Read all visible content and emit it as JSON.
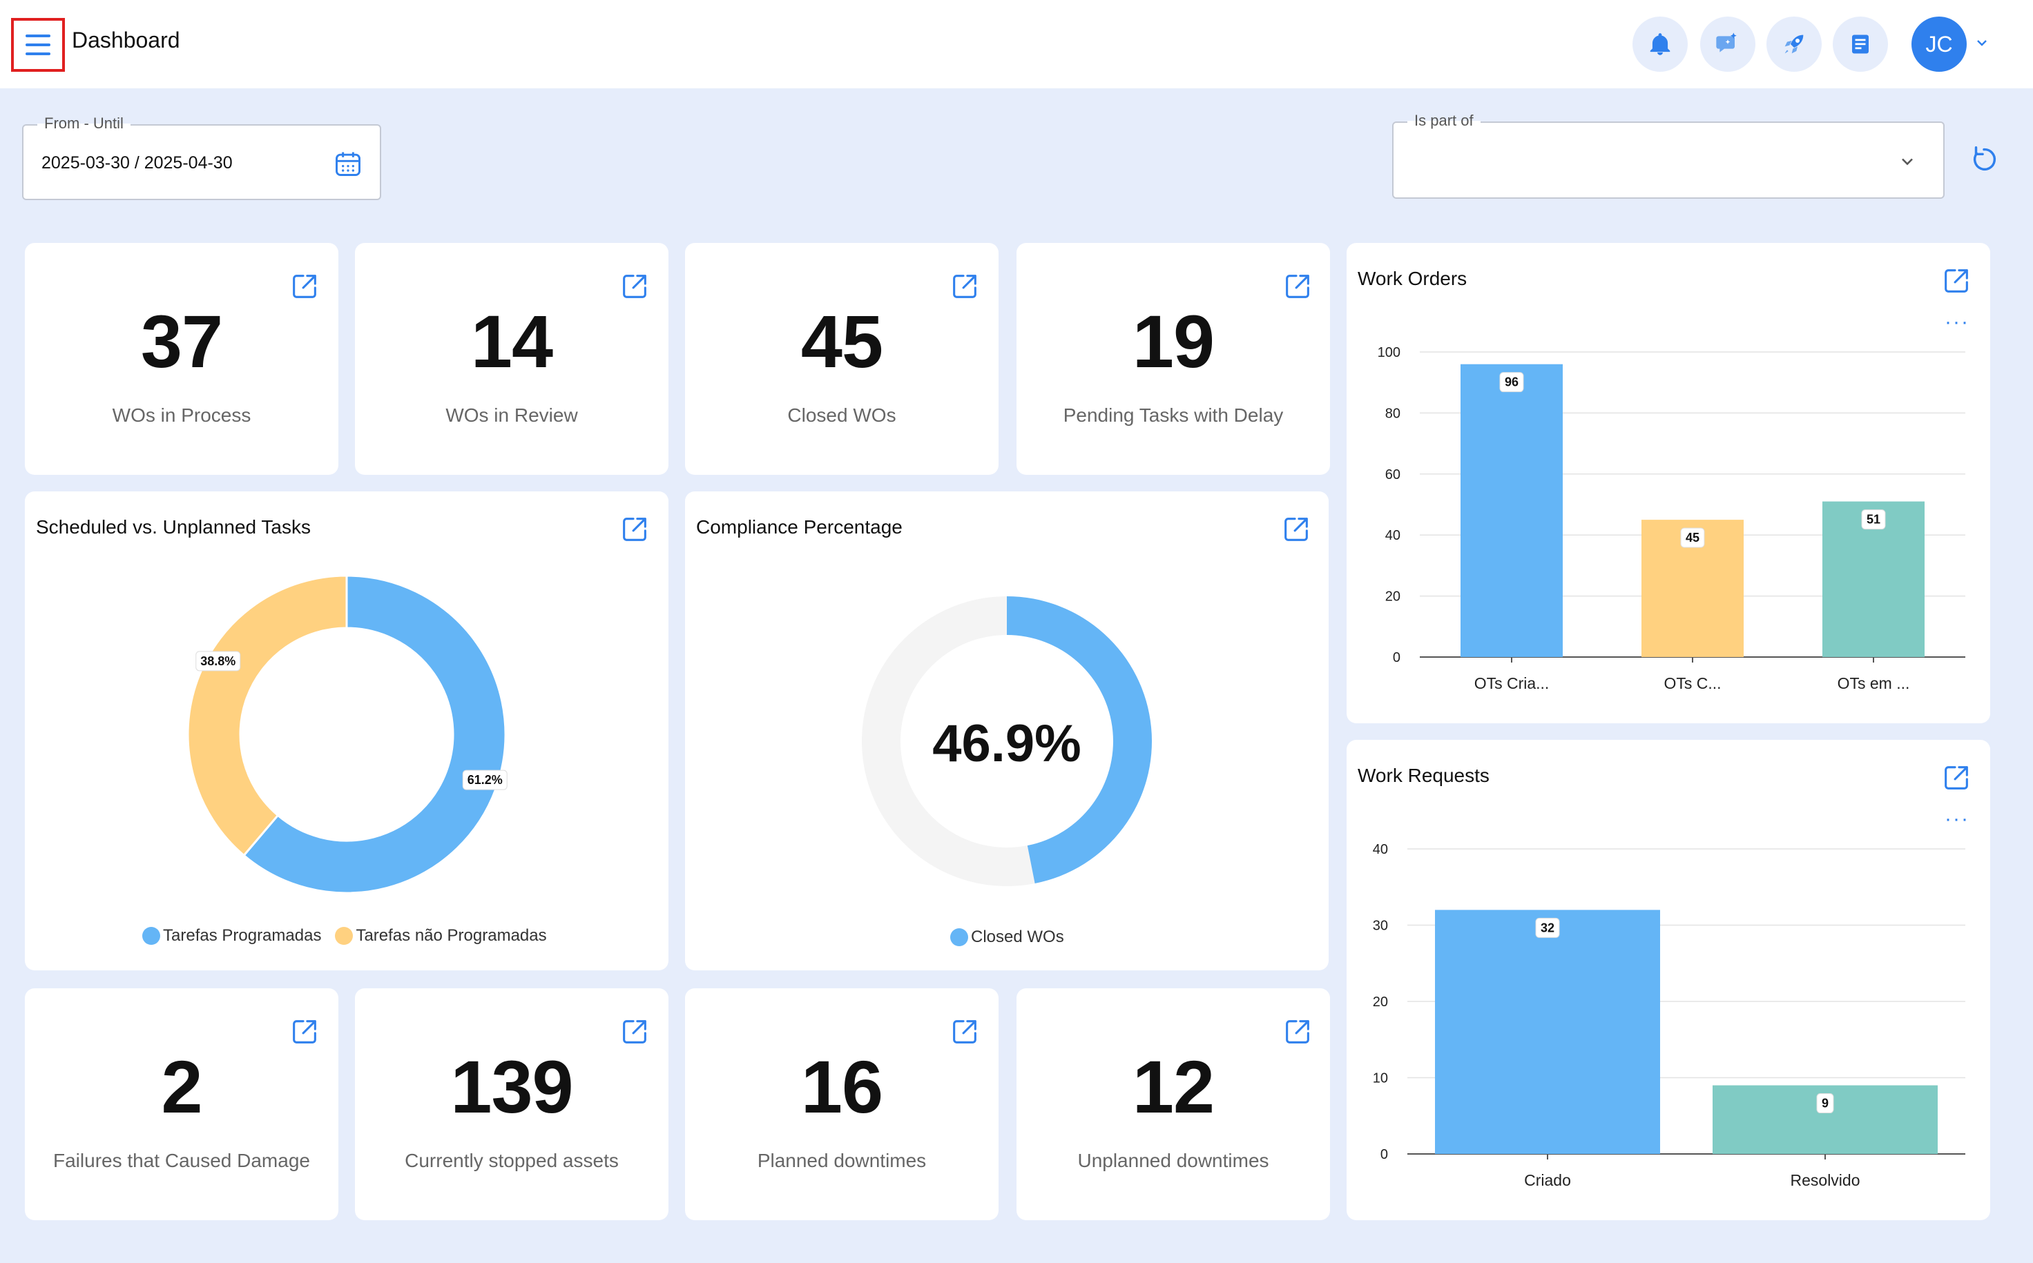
{
  "header": {
    "title": "Dashboard",
    "avatar_initials": "JC"
  },
  "filters": {
    "date_label": "From - Until",
    "date_value": "2025-03-30 / 2025-04-30",
    "part_label": "Is part of",
    "part_value": ""
  },
  "kpis_top": [
    {
      "value": "37",
      "label": "WOs in Process"
    },
    {
      "value": "14",
      "label": "WOs in Review"
    },
    {
      "value": "45",
      "label": "Closed WOs"
    },
    {
      "value": "19",
      "label": "Pending Tasks with Delay"
    }
  ],
  "kpis_bottom": [
    {
      "value": "2",
      "label": "Failures that Caused Damage"
    },
    {
      "value": "139",
      "label": "Currently stopped assets"
    },
    {
      "value": "16",
      "label": "Planned downtimes"
    },
    {
      "value": "12",
      "label": "Unplanned downtimes"
    }
  ],
  "colors": {
    "blue": "#64b5f6",
    "yellow": "#ffd180",
    "teal": "#80cbc4",
    "accent": "#2f80ed",
    "background": "#e6edfb"
  },
  "chart_data": [
    {
      "id": "scheduled",
      "type": "pie",
      "title": "Scheduled vs. Unplanned Tasks",
      "series": [
        {
          "name": "Tarefas Programadas",
          "value": 61.2,
          "label": "61.2%",
          "color": "#64b5f6"
        },
        {
          "name": "Tarefas não Programadas",
          "value": 38.8,
          "label": "38.8%",
          "color": "#ffd180"
        }
      ]
    },
    {
      "id": "compliance",
      "type": "pie",
      "title": "Compliance Percentage",
      "center_label": "46.9%",
      "value": 46.9,
      "series": [
        {
          "name": "Closed WOs",
          "value": 46.9,
          "color": "#64b5f6"
        }
      ]
    },
    {
      "id": "work_orders",
      "type": "bar",
      "title": "Work Orders",
      "categories": [
        "OTs Cria...",
        "OTs C...",
        "OTs em ..."
      ],
      "values": [
        96,
        45,
        51
      ],
      "colors": [
        "#64b5f6",
        "#ffd180",
        "#80cbc4"
      ],
      "ylim": [
        0,
        100
      ],
      "yticks": [
        0,
        20,
        40,
        60,
        80,
        100
      ],
      "grid": true
    },
    {
      "id": "work_requests",
      "type": "bar",
      "title": "Work Requests",
      "categories": [
        "Criado",
        "Resolvido"
      ],
      "values": [
        32,
        9
      ],
      "colors": [
        "#64b5f6",
        "#80cbc4"
      ],
      "ylim": [
        0,
        40
      ],
      "yticks": [
        0,
        10,
        20,
        30,
        40
      ],
      "grid": true
    }
  ]
}
